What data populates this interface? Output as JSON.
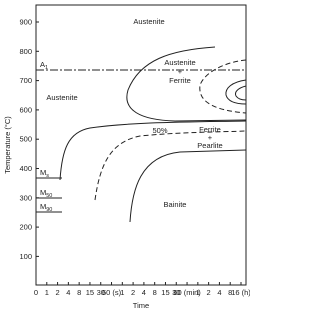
{
  "y_axis": {
    "title": "Temperature (°C)",
    "ticks": [
      "900",
      "800",
      "700",
      "600",
      "500",
      "400",
      "300",
      "200",
      "100"
    ]
  },
  "x_axis": {
    "title": "Time",
    "ticks": [
      "0",
      "1",
      "2",
      "4",
      "8",
      "15",
      "30",
      "60 (s)",
      "1",
      "2",
      "4",
      "8",
      "15",
      "30",
      "60 (min)",
      "1",
      "2",
      "4",
      "8",
      "16 (h)"
    ]
  },
  "regions": {
    "austenite_top": "Austenite",
    "austenite_left": "Austenite",
    "austenite_ferrite": [
      "Austenite",
      "+",
      "Ferrite"
    ],
    "ferrite_pearlite": [
      "Ferrite",
      "+",
      "Pearlite"
    ],
    "fifty": "50%",
    "bainite": "Bainite"
  },
  "lines": {
    "a1": {
      "label": "A",
      "sub": "1"
    },
    "ms": {
      "label": "M",
      "sub": "s"
    },
    "m50": {
      "label": "M",
      "sub": "50"
    },
    "m90": {
      "label": "M",
      "sub": "90"
    }
  }
}
